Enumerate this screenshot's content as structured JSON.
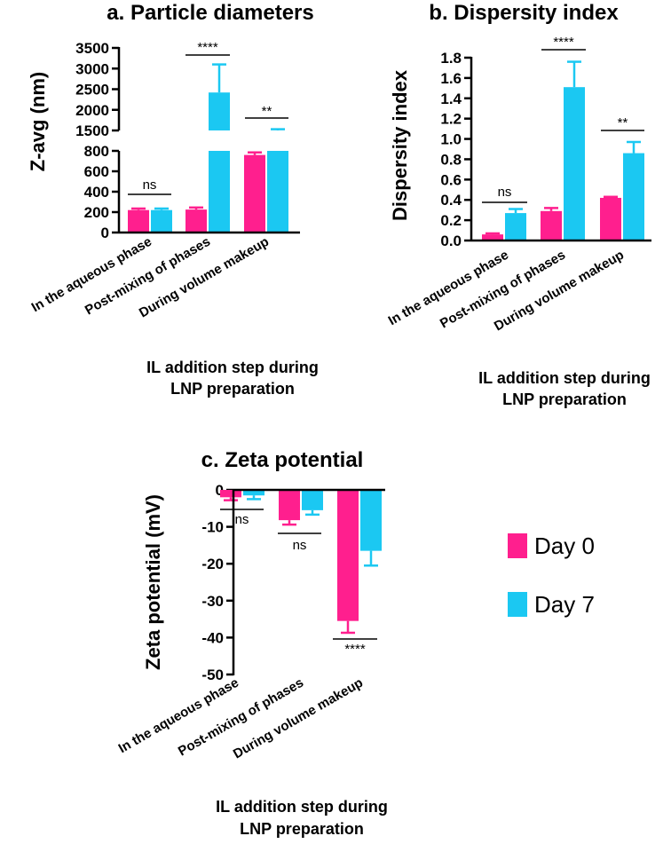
{
  "colors": {
    "day0": "#FF1F8E",
    "day7": "#1BC8F2"
  },
  "legend": [
    {
      "label": "Day 0",
      "color": "#FF1F8E"
    },
    {
      "label": "Day 7",
      "color": "#1BC8F2"
    }
  ],
  "chart_data": [
    {
      "id": "a",
      "type": "bar",
      "title": "a. Particle diameters",
      "ylabel": "Z-avg (nm)",
      "xlabel": [
        "IL addition step during",
        "LNP preparation"
      ],
      "categories": [
        "In the aqueous phase",
        "Post-mixing of phases",
        "During volume makeup"
      ],
      "series": [
        {
          "name": "Day 0",
          "values": [
            220,
            225,
            760
          ],
          "errors": [
            15,
            20,
            25
          ]
        },
        {
          "name": "Day 7",
          "values": [
            220,
            2420,
            1500
          ],
          "errors": [
            15,
            680,
            30
          ]
        }
      ],
      "axis_break": {
        "lower": [
          0,
          800
        ],
        "upper": [
          1500,
          3500
        ]
      },
      "yticks": [
        "0",
        "200",
        "400",
        "600",
        "800",
        "1500",
        "2000",
        "2500",
        "3000",
        "3500"
      ],
      "significance": [
        "ns",
        "****",
        "**"
      ]
    },
    {
      "id": "b",
      "type": "bar",
      "title": "b. Dispersity index",
      "ylabel": "Dispersity index",
      "xlabel": [
        "IL addition step during",
        "LNP preparation"
      ],
      "categories": [
        "In the aqueous phase",
        "Post-mixing of phases",
        "During volume makeup"
      ],
      "series": [
        {
          "name": "Day 0",
          "values": [
            0.06,
            0.29,
            0.42
          ],
          "errors": [
            0.01,
            0.03,
            0.01
          ]
        },
        {
          "name": "Day 7",
          "values": [
            0.27,
            1.51,
            0.86
          ],
          "errors": [
            0.04,
            0.25,
            0.11
          ]
        }
      ],
      "ylim": [
        0,
        1.8
      ],
      "yticks": [
        "0.0",
        "0.2",
        "0.4",
        "0.6",
        "0.8",
        "1.0",
        "1.2",
        "1.4",
        "1.6",
        "1.8"
      ],
      "significance": [
        "ns",
        "****",
        "**"
      ]
    },
    {
      "id": "c",
      "type": "bar",
      "title": "c. Zeta potential",
      "ylabel": "Zeta potential (mV)",
      "xlabel": [
        "IL addition step during",
        "LNP preparation"
      ],
      "categories": [
        "In the aqueous phase",
        "Post-mixing of phases",
        "During volume makeup"
      ],
      "series": [
        {
          "name": "Day 0",
          "values": [
            -2,
            -8.2,
            -35.5
          ],
          "errors": [
            0.8,
            1.2,
            3.2
          ]
        },
        {
          "name": "Day 7",
          "values": [
            -1.5,
            -5.5,
            -16.5
          ],
          "errors": [
            1.0,
            1.2,
            4.0
          ]
        }
      ],
      "ylim": [
        -50,
        0
      ],
      "yticks": [
        "0",
        "-10",
        "-20",
        "-30",
        "-40",
        "-50"
      ],
      "significance": [
        "ns",
        "ns",
        "****"
      ]
    }
  ]
}
